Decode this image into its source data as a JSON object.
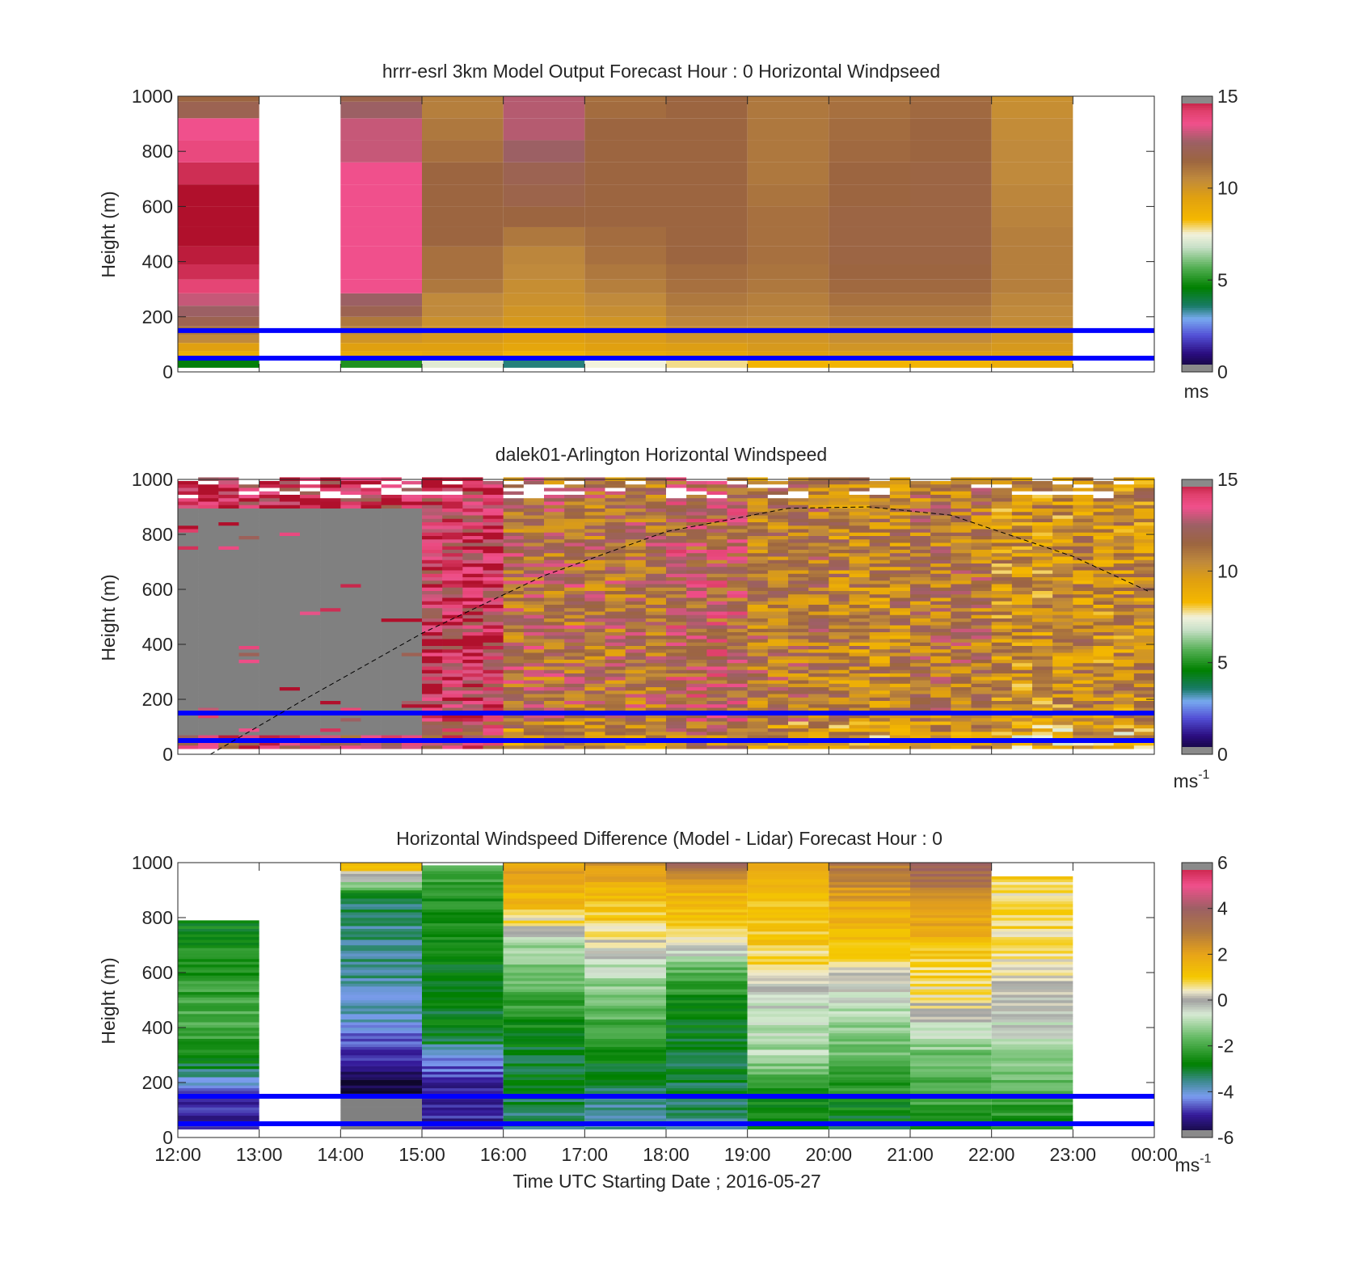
{
  "figure": {
    "xlabel": "Time UTC  Starting Date ; 2016-05-27",
    "x_ticks": [
      "12:00",
      "13:00",
      "14:00",
      "15:00",
      "16:00",
      "17:00",
      "18:00",
      "19:00",
      "20:00",
      "21:00",
      "22:00",
      "23:00",
      "00:00"
    ],
    "y_ticks": [
      "0",
      "200",
      "400",
      "600",
      "800",
      "1000"
    ]
  },
  "chart_data": [
    {
      "type": "heatmap",
      "title": "hrrr-esrl 3km Model Output   Forecast Hour : 0 Horizontal Windpseed",
      "ylabel": "Height (m)",
      "xlim": [
        0,
        12
      ],
      "ylim": [
        0,
        1000
      ],
      "colorbar": {
        "ticks": [
          "0",
          "5",
          "10",
          "15"
        ],
        "range": [
          0,
          15
        ],
        "unit": "ms"
      },
      "blue_lines_m": [
        150,
        50
      ],
      "levels_m": [
        30,
        60,
        90,
        120,
        150,
        180,
        220,
        260,
        310,
        360,
        420,
        490,
        560,
        640,
        720,
        800,
        880,
        960,
        1000
      ],
      "columns": [
        {
          "hour": 0,
          "values": [
            4.5,
            8.8,
            9.5,
            10.5,
            11,
            12,
            12.5,
            13,
            14,
            14.5,
            14.8,
            15.5,
            15,
            15,
            14.5,
            13.8,
            13.5,
            12,
            11.5
          ]
        },
        {
          "hour": 1,
          "values": null
        },
        {
          "hour": 2,
          "values": [
            5,
            9,
            9.5,
            10,
            10.5,
            11,
            12,
            12.5,
            13.5,
            13.5,
            13.5,
            13.5,
            13.5,
            13.5,
            13.5,
            13,
            13,
            12.5,
            11.8
          ]
        },
        {
          "hour": 3,
          "values": [
            7.2,
            9.2,
            9.5,
            9.8,
            10,
            10.2,
            10.5,
            10.5,
            11,
            11.2,
            11.2,
            11.5,
            11.5,
            11.5,
            11.5,
            11.2,
            11,
            10.8,
            10.8
          ]
        },
        {
          "hour": 4,
          "values": [
            3.5,
            8.5,
            9.2,
            9.5,
            9.6,
            9.8,
            10,
            10.2,
            10.3,
            10.5,
            10.6,
            11,
            11.5,
            11.8,
            12,
            12.5,
            12.8,
            12.8,
            12.8
          ]
        },
        {
          "hour": 5,
          "values": [
            7.5,
            9,
            9.5,
            9.7,
            9.8,
            10,
            10.3,
            10.5,
            10.8,
            11,
            11.2,
            11.3,
            11.5,
            11.5,
            11.5,
            11.5,
            11.5,
            11.3,
            11.2
          ]
        },
        {
          "hour": 6,
          "values": [
            7.8,
            9.2,
            9.6,
            10,
            10.3,
            10.6,
            10.8,
            11,
            11.2,
            11.3,
            11.5,
            11.5,
            11.5,
            11.5,
            11.5,
            11.5,
            11.5,
            11.5,
            11.5
          ]
        },
        {
          "hour": 7,
          "values": [
            8.5,
            9.5,
            9.8,
            10,
            10.3,
            10.5,
            10.7,
            10.8,
            11,
            11.1,
            11.2,
            11.2,
            11.2,
            11.1,
            11,
            11,
            11,
            11,
            11
          ]
        },
        {
          "hour": 8,
          "values": [
            8.5,
            9.6,
            10,
            10.3,
            10.5,
            10.8,
            11,
            11.2,
            11.4,
            11.5,
            11.6,
            11.6,
            11.6,
            11.5,
            11.5,
            11.4,
            11.3,
            11.2,
            11.1
          ]
        },
        {
          "hour": 9,
          "values": [
            8.5,
            9.6,
            10,
            10.4,
            10.6,
            10.8,
            11,
            11.2,
            11.4,
            11.5,
            11.6,
            11.6,
            11.6,
            11.6,
            11.6,
            11.5,
            11.5,
            11.4,
            11.3
          ]
        },
        {
          "hour": 10,
          "values": [
            8.8,
            9.5,
            9.8,
            10,
            10.2,
            10.4,
            10.5,
            10.6,
            10.8,
            10.8,
            10.8,
            10.8,
            10.7,
            10.6,
            10.5,
            10.5,
            10.4,
            10.3,
            10.2
          ]
        },
        {
          "hour": 11,
          "values": null
        }
      ]
    },
    {
      "type": "heatmap",
      "title": "dalek01-Arlington  Horizontal Windspeed",
      "ylabel": "Height (m)",
      "xlim": [
        0,
        12
      ],
      "ylim": [
        0,
        1000
      ],
      "colorbar": {
        "ticks": [
          "0",
          "5",
          "10",
          "15"
        ],
        "range": [
          0,
          15
        ],
        "unit": "ms",
        "unit_exp": "-1"
      },
      "blue_lines_m": [
        150,
        50
      ],
      "grey_fill_value": -1,
      "column_width_h": 0.25,
      "grey_block": {
        "hours": [
          0,
          3
        ],
        "from_m": 60,
        "to_m": 890
      },
      "lidar_hour_mean_ms": [
        14,
        14,
        14,
        14,
        11.5,
        11.3,
        12.2,
        11,
        10.5,
        11,
        10,
        10.2
      ],
      "boundary_layer_curve": {
        "style": "dashed",
        "points": [
          [
            0.4,
            0
          ],
          [
            1.5,
            190
          ],
          [
            3,
            440
          ],
          [
            4.5,
            650
          ],
          [
            6,
            810
          ],
          [
            7.5,
            895
          ],
          [
            8.5,
            900
          ],
          [
            9.5,
            870
          ],
          [
            11,
            720
          ],
          [
            11.95,
            590
          ]
        ]
      }
    },
    {
      "type": "heatmap",
      "title": "Horizontal Windspeed Difference (Model - Lidar) Forecast Hour : 0",
      "ylabel": "Height (m)",
      "xlim": [
        0,
        12
      ],
      "ylim": [
        0,
        1000
      ],
      "colorbar": {
        "ticks": [
          "-6",
          "-4",
          "-2",
          "0",
          "2",
          "4",
          "6"
        ],
        "range": [
          -6,
          6
        ],
        "unit": "ms",
        "unit_exp": "-1"
      },
      "blue_lines_m": [
        150,
        50
      ],
      "grey_fill_value": -99,
      "profiles": [
        {
          "hour": 0,
          "top_m": 790,
          "points": [
            [
              30,
              -5
            ],
            [
              140,
              -5
            ],
            [
              200,
              -4
            ],
            [
              260,
              -3
            ],
            [
              400,
              -1.8
            ],
            [
              600,
              -2.4
            ],
            [
              790,
              -2.8
            ]
          ]
        },
        {
          "hour": 1,
          "top_m": 0,
          "points": []
        },
        {
          "hour": 2,
          "top_m": 1000,
          "points": [
            [
              30,
              -99
            ],
            [
              150,
              -99
            ],
            [
              160,
              -5.8
            ],
            [
              300,
              -5
            ],
            [
              420,
              -4
            ],
            [
              600,
              -3.5
            ],
            [
              800,
              -3.5
            ],
            [
              880,
              -3
            ],
            [
              940,
              0
            ],
            [
              1000,
              2
            ]
          ]
        },
        {
          "hour": 3,
          "top_m": 990,
          "points": [
            [
              30,
              -5
            ],
            [
              150,
              -5.2
            ],
            [
              320,
              -4
            ],
            [
              340,
              -3
            ],
            [
              600,
              -2.8
            ],
            [
              900,
              -2.5
            ],
            [
              990,
              -1.5
            ]
          ]
        },
        {
          "hour": 4,
          "top_m": 1000,
          "points": [
            [
              30,
              -3.5
            ],
            [
              150,
              -3
            ],
            [
              300,
              -3
            ],
            [
              500,
              -2
            ],
            [
              700,
              -1
            ],
            [
              760,
              0.3
            ],
            [
              860,
              1.5
            ],
            [
              1000,
              2
            ]
          ]
        },
        {
          "hour": 5,
          "top_m": 1000,
          "points": [
            [
              30,
              -3.8
            ],
            [
              150,
              -3.5
            ],
            [
              300,
              -2.5
            ],
            [
              500,
              -1.5
            ],
            [
              650,
              -0.5
            ],
            [
              720,
              0.6
            ],
            [
              860,
              1.3
            ],
            [
              1000,
              2.5
            ]
          ]
        },
        {
          "hour": 6,
          "top_m": 1000,
          "points": [
            [
              30,
              -3.5
            ],
            [
              150,
              -3.2
            ],
            [
              300,
              -3
            ],
            [
              500,
              -2.5
            ],
            [
              620,
              -1.5
            ],
            [
              720,
              0.8
            ],
            [
              880,
              1.5
            ],
            [
              950,
              2.5
            ],
            [
              1000,
              4.5
            ]
          ]
        },
        {
          "hour": 7,
          "top_m": 1000,
          "points": [
            [
              30,
              -3
            ],
            [
              150,
              -2.5
            ],
            [
              300,
              -1
            ],
            [
              450,
              -0.8
            ],
            [
              600,
              0.6
            ],
            [
              700,
              1
            ],
            [
              850,
              1.2
            ],
            [
              1000,
              2
            ]
          ]
        },
        {
          "hour": 8,
          "top_m": 1000,
          "points": [
            [
              30,
              -3
            ],
            [
              150,
              -2.5
            ],
            [
              300,
              -1.6
            ],
            [
              500,
              -0.6
            ],
            [
              620,
              0.6
            ],
            [
              800,
              1.6
            ],
            [
              950,
              2.8
            ],
            [
              1000,
              3
            ]
          ]
        },
        {
          "hour": 9,
          "top_m": 1000,
          "points": [
            [
              30,
              -2.5
            ],
            [
              150,
              -2
            ],
            [
              300,
              -1.5
            ],
            [
              500,
              0.5
            ],
            [
              640,
              1
            ],
            [
              800,
              2
            ],
            [
              900,
              3
            ],
            [
              1000,
              3.8
            ]
          ]
        },
        {
          "hour": 10,
          "top_m": 950,
          "points": [
            [
              30,
              -2.5
            ],
            [
              150,
              -2
            ],
            [
              300,
              -1
            ],
            [
              450,
              -0.3
            ],
            [
              600,
              0.4
            ],
            [
              700,
              0.8
            ],
            [
              850,
              0.6
            ],
            [
              920,
              0.8
            ],
            [
              950,
              1.2
            ]
          ]
        },
        {
          "hour": 11,
          "top_m": 0,
          "points": []
        }
      ]
    }
  ],
  "colors": {
    "blue_line": "#0000ff",
    "missing_grey": "#808080",
    "axis": "#262626",
    "windspeed_stops": [
      [
        0,
        "#0d0628"
      ],
      [
        1,
        "#2a0c7e"
      ],
      [
        2,
        "#5350d6"
      ],
      [
        2.9,
        "#78aaf0"
      ],
      [
        3.6,
        "#187a66"
      ],
      [
        4.6,
        "#008000"
      ],
      [
        5.7,
        "#55b055"
      ],
      [
        6.8,
        "#c8e0c8"
      ],
      [
        7.5,
        "#f2f2dc"
      ],
      [
        8.3,
        "#f5b800"
      ],
      [
        9.5,
        "#e0a010"
      ],
      [
        10.5,
        "#c08a3c"
      ],
      [
        11.5,
        "#9c6540"
      ],
      [
        12.5,
        "#9c6064"
      ],
      [
        13.5,
        "#f0508c"
      ],
      [
        14.2,
        "#e0406c"
      ],
      [
        15,
        "#b0102c"
      ]
    ],
    "difference_stops": [
      [
        -6,
        "#0d0628"
      ],
      [
        -5,
        "#351a9a"
      ],
      [
        -4.2,
        "#7b9cf0"
      ],
      [
        -3.5,
        "#3a8a8a"
      ],
      [
        -2.8,
        "#008000"
      ],
      [
        -1.6,
        "#66bb66"
      ],
      [
        -0.6,
        "#d8ead4"
      ],
      [
        0,
        "#a0a0a0"
      ],
      [
        0.4,
        "#f2eccc"
      ],
      [
        1,
        "#f5c800"
      ],
      [
        2,
        "#e8a418"
      ],
      [
        3,
        "#b07840"
      ],
      [
        4,
        "#9c6064"
      ],
      [
        5,
        "#f0508c"
      ],
      [
        6,
        "#c01838"
      ]
    ]
  }
}
